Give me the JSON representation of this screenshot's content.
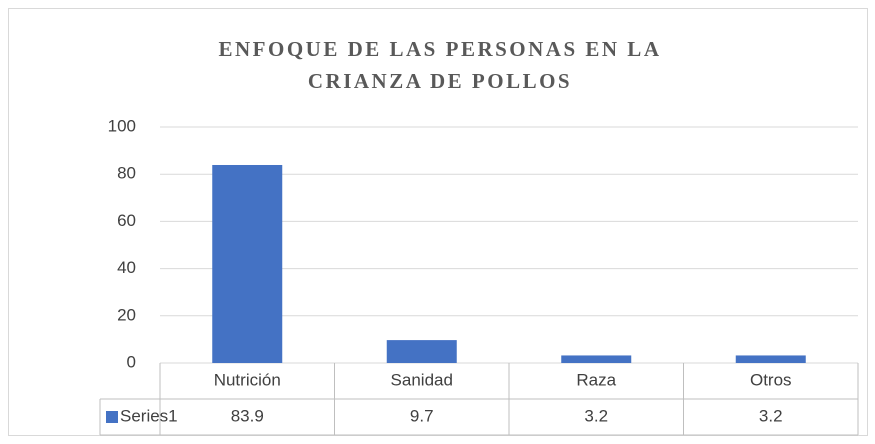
{
  "chart_data": {
    "type": "bar",
    "title": "ENFOQUE DE LAS PERSONAS EN LA CRIANZA DE POLLOS",
    "categories": [
      "Nutrición",
      "Sanidad",
      "Raza",
      "Otros"
    ],
    "series": [
      {
        "name": "Series1",
        "color": "#4472c4",
        "values": [
          83.9,
          9.7,
          3.2,
          3.2
        ]
      }
    ],
    "ylim": [
      0,
      100
    ],
    "yticks": [
      0,
      20,
      40,
      60,
      80,
      100
    ],
    "grid": true
  }
}
